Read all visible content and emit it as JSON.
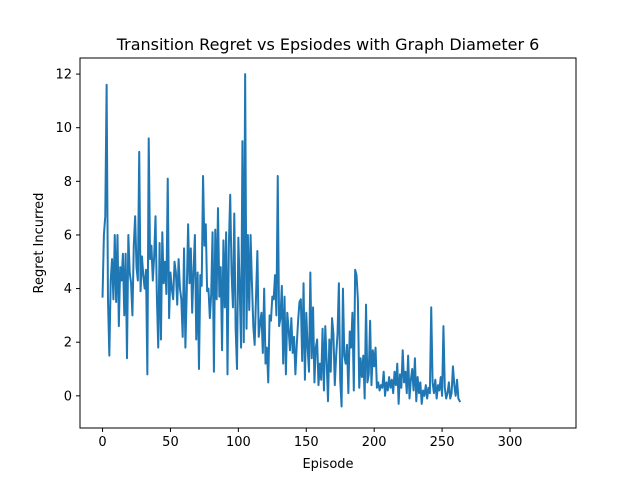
{
  "chart_data": {
    "type": "line",
    "title": "Transition Regret vs Epsiodes with Graph Diameter 6",
    "xlabel": "Episode",
    "ylabel": "Regret Incurred",
    "xlim": [
      -16.6,
      348.6
    ],
    "ylim": [
      -1.2,
      12.6
    ],
    "xticks": [
      0,
      50,
      100,
      150,
      200,
      250,
      300
    ],
    "yticks": [
      0,
      2,
      4,
      6,
      8,
      10,
      12
    ],
    "grid": false,
    "legend": "none",
    "series": [
      {
        "color": "#1f77b4",
        "values": [
          3.7,
          6.0,
          6.7,
          11.6,
          3.6,
          1.5,
          4.3,
          5.1,
          3.6,
          6.0,
          3.5,
          6.0,
          2.6,
          4.8,
          4.3,
          5.3,
          3.0,
          5.3,
          1.4,
          6.0,
          4.6,
          4.2,
          3.0,
          5.6,
          6.7,
          4.8,
          4.3,
          9.1,
          3.9,
          5.2,
          4.5,
          4.0,
          4.7,
          0.8,
          9.6,
          5.1,
          5.6,
          4.3,
          5.2,
          6.7,
          3.7,
          1.8,
          5.7,
          2.1,
          6.1,
          4.2,
          5.0,
          3.8,
          8.1,
          2.9,
          4.6,
          4.0,
          3.6,
          5.0,
          4.6,
          3.4,
          5.1,
          4.0,
          3.6,
          2.2,
          5.5,
          1.8,
          3.9,
          6.4,
          4.2,
          5.5,
          3.1,
          4.7,
          6.0,
          2.1,
          4.6,
          1.0,
          4.5,
          4.1,
          8.2,
          5.6,
          6.4,
          3.9,
          4.0,
          2.9,
          3.8,
          6.1,
          0.9,
          6.2,
          3.6,
          7.0,
          3.7,
          4.8,
          1.7,
          5.8,
          3.3,
          6.1,
          0.8,
          5.6,
          7.5,
          4.6,
          3.3,
          6.8,
          2.5,
          1.0,
          5.9,
          4.0,
          1.8,
          9.5,
          2.0,
          12.0,
          2.5,
          6.0,
          3.2,
          6.0,
          4.2,
          2.6,
          1.9,
          3.7,
          5.4,
          2.2,
          2.7,
          3.1,
          1.6,
          4.0,
          1.2,
          1.8,
          0.5,
          3.0,
          2.8,
          3.7,
          3.6,
          4.5,
          3.0,
          8.2,
          2.6,
          2.9,
          4.1,
          1.2,
          3.7,
          0.8,
          3.1,
          2.5,
          1.7,
          2.9,
          1.6,
          2.2,
          0.8,
          1.9,
          2.8,
          3.5,
          3.6,
          1.3,
          4.2,
          0.6,
          3.1,
          1.8,
          0.9,
          4.6,
          1.4,
          3.3,
          0.5,
          1.8,
          2.1,
          0.4,
          1.2,
          0.6,
          2.5,
          0.2,
          2.6,
          1.3,
          -0.2,
          2.1,
          0.9,
          2.9,
          2.3,
          0.4,
          1.5,
          2.3,
          4.2,
          0.6,
          -0.4,
          4.0,
          1.5,
          1.2,
          1.9,
          0.1,
          2.4,
          1.8,
          3.1,
          0.2,
          4.7,
          4.5,
          3.6,
          0.3,
          1.4,
          0.7,
          1.5,
          -0.1,
          3.4,
          0.5,
          0.8,
          2.8,
          0.4,
          1.7,
          1.1,
          1.8,
          0.3,
          0.5,
          0.2,
          0.4,
          0.3,
          0.9,
          0.0,
          0.5,
          0.2,
          0.7,
          0.3,
          0.6,
          0.1,
          0.9,
          0.4,
          1.2,
          -0.3,
          0.8,
          0.3,
          1.7,
          0.5,
          0.9,
          0.1,
          1.5,
          -0.1,
          0.6,
          1.0,
          0.2,
          1.4,
          -0.2,
          0.7,
          0.1,
          0.5,
          -0.3,
          0.2,
          0.0,
          0.4,
          -0.1,
          0.3,
          0.1,
          3.3,
          0.5,
          0.1,
          0.6,
          -0.1,
          0.4,
          0.2,
          0.7,
          0.0,
          2.6,
          0.3,
          -0.1,
          0.1,
          0.5,
          -0.1,
          0.1,
          1.1,
          0.4,
          0.0,
          0.6,
          -0.1,
          -0.2
        ]
      }
    ]
  }
}
